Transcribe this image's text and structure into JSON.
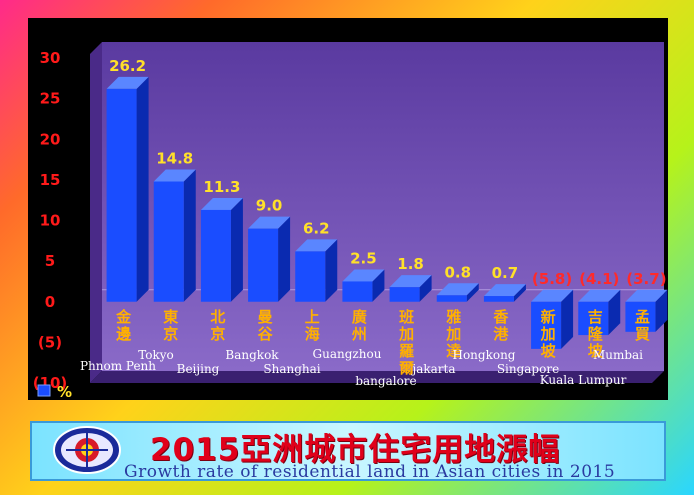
{
  "title_cn": "2015亞洲城市住宅用地漲幅",
  "title_en": "Growth rate of residential land in Asian cities in 2015",
  "legend_label": "%",
  "colors": {
    "bar_front": "#1a4dff",
    "bar_side": "#0a2ab0",
    "bar_top": "#5a86ff",
    "plot_bg": "#6f4fb0",
    "pos_label": "#ffe02a",
    "neg_label": "#ff2a2a",
    "city_cn": "#ffb000",
    "tick": "#ff1a1a"
  },
  "chart_data": {
    "type": "bar",
    "title": "2015亞洲城市住宅用地漲幅",
    "ylim": [
      -10,
      30
    ],
    "yticks": [
      "30",
      "25",
      "20",
      "15",
      "10",
      "5",
      "0",
      "(5)",
      "(10)"
    ],
    "categories": [
      {
        "cn": "金邊",
        "en": "Phnom Penh"
      },
      {
        "cn": "東京",
        "en": "Tokyo"
      },
      {
        "cn": "北京",
        "en": "Beijing"
      },
      {
        "cn": "曼谷",
        "en": "Bangkok"
      },
      {
        "cn": "上海",
        "en": "Shanghai"
      },
      {
        "cn": "廣州",
        "en": "Guangzhou"
      },
      {
        "cn": "班加羅爾",
        "en": "bangalore"
      },
      {
        "cn": "雅加達",
        "en": "jakarta"
      },
      {
        "cn": "香港",
        "en": "Hongkong"
      },
      {
        "cn": "新加坡",
        "en": "Singapore"
      },
      {
        "cn": "吉隆坡",
        "en": "Kuala Lumpur"
      },
      {
        "cn": "孟買",
        "en": "Mumbai"
      }
    ],
    "values": [
      26.2,
      14.8,
      11.3,
      9.0,
      6.2,
      2.5,
      1.8,
      0.8,
      0.7,
      -5.8,
      -4.1,
      -3.7
    ],
    "value_labels": [
      "26.2",
      "14.8",
      "11.3",
      "9.0",
      "6.2",
      "2.5",
      "1.8",
      "0.8",
      "0.7",
      "(5.8)",
      "(4.1)",
      "(3.7)"
    ],
    "series": [
      {
        "name": "%",
        "values": [
          26.2,
          14.8,
          11.3,
          9.0,
          6.2,
          2.5,
          1.8,
          0.8,
          0.7,
          -5.8,
          -4.1,
          -3.7
        ]
      }
    ],
    "legend_position": "bottom-left"
  }
}
